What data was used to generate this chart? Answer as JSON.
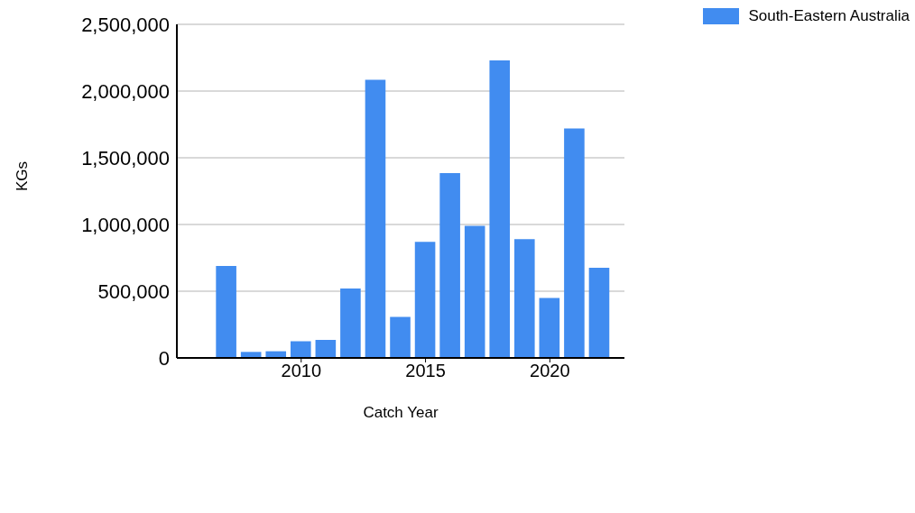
{
  "chart_data": {
    "type": "bar",
    "xlabel": "Catch Year",
    "ylabel": "KGs",
    "x": [
      2007,
      2008,
      2009,
      2010,
      2011,
      2012,
      2013,
      2014,
      2015,
      2016,
      2017,
      2018,
      2019,
      2020,
      2021,
      2022
    ],
    "series": [
      {
        "name": "South-Eastern Australia",
        "color": "#418cf0",
        "values": [
          690000,
          45000,
          50000,
          125000,
          135000,
          520000,
          2085000,
          308000,
          870000,
          1385000,
          990000,
          2230000,
          890000,
          450000,
          1720000,
          675000
        ]
      }
    ],
    "xlim": [
      2005,
      2023
    ],
    "xticks": [
      2010,
      2015,
      2020
    ],
    "ylim": [
      0,
      2500000
    ],
    "yticks": [
      {
        "value": 0,
        "label": "0"
      },
      {
        "value": 500000,
        "label": "500,000"
      },
      {
        "value": 1000000,
        "label": "1,000,000"
      },
      {
        "value": 1500000,
        "label": "1,500,000"
      },
      {
        "value": 2000000,
        "label": "2,000,000"
      },
      {
        "value": 2500000,
        "label": "2,500,000"
      }
    ],
    "grid": "y",
    "legend": "top right"
  }
}
